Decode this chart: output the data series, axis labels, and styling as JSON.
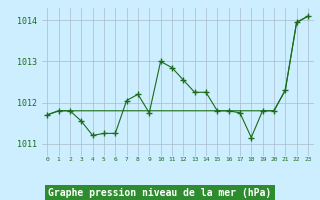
{
  "x": [
    0,
    1,
    2,
    3,
    4,
    5,
    6,
    7,
    8,
    9,
    10,
    11,
    12,
    13,
    14,
    15,
    16,
    17,
    18,
    19,
    20,
    21,
    22,
    23
  ],
  "y_main": [
    1011.7,
    1011.8,
    1011.8,
    1011.55,
    1011.2,
    1011.25,
    1011.25,
    1012.05,
    1012.2,
    1011.75,
    1013.0,
    1012.85,
    1012.55,
    1012.25,
    1012.25,
    1011.8,
    1011.8,
    1011.75,
    1011.15,
    1011.8,
    1011.8,
    1012.3,
    1013.95,
    1014.1
  ],
  "y_trend": [
    1011.7,
    1011.8,
    1011.8,
    1011.8,
    1011.8,
    1011.8,
    1011.8,
    1011.8,
    1011.8,
    1011.8,
    1011.8,
    1011.8,
    1011.8,
    1011.8,
    1011.8,
    1011.8,
    1011.8,
    1011.8,
    1011.8,
    1011.8,
    1011.8,
    1012.3,
    1013.95,
    1014.1
  ],
  "title": "Graphe pression niveau de la mer (hPa)",
  "xlabel_ticks": [
    "0",
    "1",
    "2",
    "3",
    "4",
    "5",
    "6",
    "7",
    "8",
    "9",
    "10",
    "11",
    "12",
    "13",
    "14",
    "15",
    "16",
    "17",
    "18",
    "19",
    "20",
    "21",
    "22",
    "23"
  ],
  "ylim": [
    1010.7,
    1014.3
  ],
  "xlim": [
    -0.5,
    23.5
  ],
  "yticks": [
    1011,
    1012,
    1013,
    1014
  ],
  "line_color": "#1a6b1a",
  "bg_color": "#cceeff",
  "grid_color": "#aabbcc",
  "title_bg": "#2d8c2d",
  "title_color": "#ffffff"
}
